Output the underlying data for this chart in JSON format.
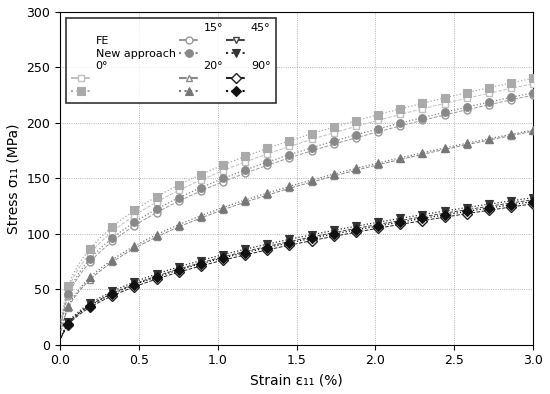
{
  "xlabel": "Strain ε₁₁ (%)",
  "ylabel": "Stress σ₁₁ (MPa)",
  "xlim": [
    0,
    3.0
  ],
  "ylim": [
    0,
    300
  ],
  "xticks": [
    0,
    0.5,
    1.0,
    1.5,
    2.0,
    2.5,
    3.0
  ],
  "yticks": [
    0,
    50,
    100,
    150,
    200,
    250,
    300
  ],
  "directions": [
    "0°",
    "15°",
    "20°",
    "45°",
    "90°"
  ],
  "colors_FE": [
    "#c0c0c0",
    "#999999",
    "#888888",
    "#444444",
    "#222222"
  ],
  "colors_NA": [
    "#aaaaaa",
    "#888888",
    "#777777",
    "#333333",
    "#111111"
  ],
  "markers_FE": [
    "s",
    "o",
    "^",
    "v",
    "D"
  ],
  "markers_NA": [
    "s",
    "o",
    "^",
    "v",
    "D"
  ],
  "curve_params_FE": [
    [
      155,
      0.38
    ],
    [
      145,
      0.4
    ],
    [
      120,
      0.43
    ],
    [
      78,
      0.47
    ],
    [
      75,
      0.48
    ]
  ],
  "curve_params_NA": [
    [
      160,
      0.37
    ],
    [
      148,
      0.39
    ],
    [
      122,
      0.42
    ],
    [
      80,
      0.46
    ],
    [
      77,
      0.47
    ]
  ],
  "xmax": 3.0,
  "n_curve_pts": 80,
  "n_marker_pts": 22
}
